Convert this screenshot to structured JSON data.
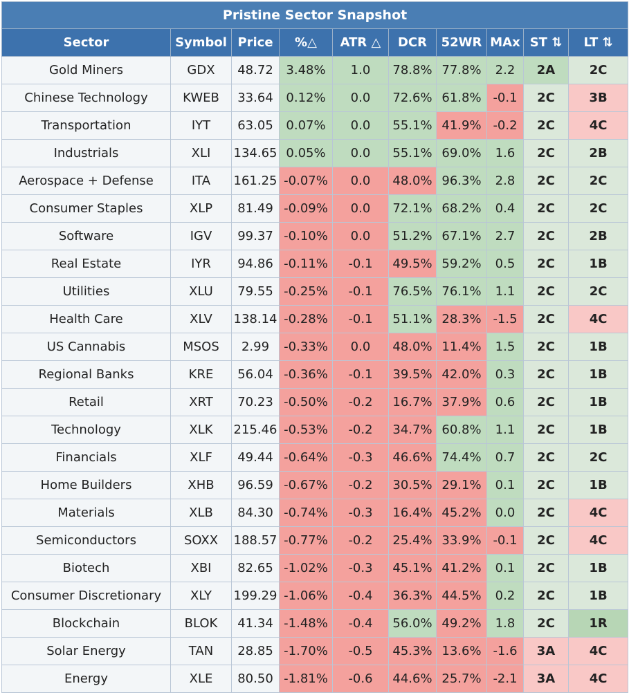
{
  "title": "Pristine Sector Snapshot",
  "columns": [
    "Sector",
    "Symbol",
    "Price",
    "%△",
    "ATR △",
    "DCR",
    "52WR",
    "MAx",
    "ST ⇅",
    "LT ⇅"
  ],
  "rows": [
    {
      "sector": "Gold Miners",
      "symbol": "GDX",
      "price": "48.72",
      "pct": "3.48%",
      "atr": "1.0",
      "dcr": "78.8%",
      "wr52": "77.8%",
      "max": "2.2",
      "st": "2A",
      "lt": "2C"
    },
    {
      "sector": "Chinese Technology",
      "symbol": "KWEB",
      "price": "33.64",
      "pct": "0.12%",
      "atr": "0.0",
      "dcr": "72.6%",
      "wr52": "61.8%",
      "max": "-0.1",
      "st": "2C",
      "lt": "3B"
    },
    {
      "sector": "Transportation",
      "symbol": "IYT",
      "price": "63.05",
      "pct": "0.07%",
      "atr": "0.0",
      "dcr": "55.1%",
      "wr52": "41.9%",
      "max": "-0.2",
      "st": "2C",
      "lt": "4C"
    },
    {
      "sector": "Industrials",
      "symbol": "XLI",
      "price": "134.65",
      "pct": "0.05%",
      "atr": "0.0",
      "dcr": "55.1%",
      "wr52": "69.0%",
      "max": "1.6",
      "st": "2C",
      "lt": "2B"
    },
    {
      "sector": "Aerospace + Defense",
      "symbol": "ITA",
      "price": "161.25",
      "pct": "-0.07%",
      "atr": "0.0",
      "dcr": "48.0%",
      "wr52": "96.3%",
      "max": "2.8",
      "st": "2C",
      "lt": "2C"
    },
    {
      "sector": "Consumer Staples",
      "symbol": "XLP",
      "price": "81.49",
      "pct": "-0.09%",
      "atr": "0.0",
      "dcr": "72.1%",
      "wr52": "68.2%",
      "max": "0.4",
      "st": "2C",
      "lt": "2C"
    },
    {
      "sector": "Software",
      "symbol": "IGV",
      "price": "99.37",
      "pct": "-0.10%",
      "atr": "0.0",
      "dcr": "51.2%",
      "wr52": "67.1%",
      "max": "2.7",
      "st": "2C",
      "lt": "2B"
    },
    {
      "sector": "Real Estate",
      "symbol": "IYR",
      "price": "94.86",
      "pct": "-0.11%",
      "atr": "-0.1",
      "dcr": "49.5%",
      "wr52": "59.2%",
      "max": "0.5",
      "st": "2C",
      "lt": "1B"
    },
    {
      "sector": "Utilities",
      "symbol": "XLU",
      "price": "79.55",
      "pct": "-0.25%",
      "atr": "-0.1",
      "dcr": "76.5%",
      "wr52": "76.1%",
      "max": "1.1",
      "st": "2C",
      "lt": "2C"
    },
    {
      "sector": "Health Care",
      "symbol": "XLV",
      "price": "138.14",
      "pct": "-0.28%",
      "atr": "-0.1",
      "dcr": "51.1%",
      "wr52": "28.3%",
      "max": "-1.5",
      "st": "2C",
      "lt": "4C"
    },
    {
      "sector": "US Cannabis",
      "symbol": "MSOS",
      "price": "2.99",
      "pct": "-0.33%",
      "atr": "0.0",
      "dcr": "48.0%",
      "wr52": "11.4%",
      "max": "1.5",
      "st": "2C",
      "lt": "1B"
    },
    {
      "sector": "Regional Banks",
      "symbol": "KRE",
      "price": "56.04",
      "pct": "-0.36%",
      "atr": "-0.1",
      "dcr": "39.5%",
      "wr52": "42.0%",
      "max": "0.3",
      "st": "2C",
      "lt": "1B"
    },
    {
      "sector": "Retail",
      "symbol": "XRT",
      "price": "70.23",
      "pct": "-0.50%",
      "atr": "-0.2",
      "dcr": "16.7%",
      "wr52": "37.9%",
      "max": "0.6",
      "st": "2C",
      "lt": "1B"
    },
    {
      "sector": "Technology",
      "symbol": "XLK",
      "price": "215.46",
      "pct": "-0.53%",
      "atr": "-0.2",
      "dcr": "34.7%",
      "wr52": "60.8%",
      "max": "1.1",
      "st": "2C",
      "lt": "1B"
    },
    {
      "sector": "Financials",
      "symbol": "XLF",
      "price": "49.44",
      "pct": "-0.64%",
      "atr": "-0.3",
      "dcr": "46.6%",
      "wr52": "74.4%",
      "max": "0.7",
      "st": "2C",
      "lt": "2C"
    },
    {
      "sector": "Home Builders",
      "symbol": "XHB",
      "price": "96.59",
      "pct": "-0.67%",
      "atr": "-0.2",
      "dcr": "30.5%",
      "wr52": "29.1%",
      "max": "0.1",
      "st": "2C",
      "lt": "1B"
    },
    {
      "sector": "Materials",
      "symbol": "XLB",
      "price": "84.30",
      "pct": "-0.74%",
      "atr": "-0.3",
      "dcr": "16.4%",
      "wr52": "45.2%",
      "max": "0.0",
      "st": "2C",
      "lt": "4C"
    },
    {
      "sector": "Semiconductors",
      "symbol": "SOXX",
      "price": "188.57",
      "pct": "-0.77%",
      "atr": "-0.2",
      "dcr": "25.4%",
      "wr52": "33.9%",
      "max": "-0.1",
      "st": "2C",
      "lt": "4C"
    },
    {
      "sector": "Biotech",
      "symbol": "XBI",
      "price": "82.65",
      "pct": "-1.02%",
      "atr": "-0.3",
      "dcr": "45.1%",
      "wr52": "41.2%",
      "max": "0.1",
      "st": "2C",
      "lt": "1B"
    },
    {
      "sector": "Consumer Discretionary",
      "symbol": "XLY",
      "price": "199.29",
      "pct": "-1.06%",
      "atr": "-0.4",
      "dcr": "36.3%",
      "wr52": "44.5%",
      "max": "0.2",
      "st": "2C",
      "lt": "1B"
    },
    {
      "sector": "Blockchain",
      "symbol": "BLOK",
      "price": "41.34",
      "pct": "-1.48%",
      "atr": "-0.4",
      "dcr": "56.0%",
      "wr52": "49.2%",
      "max": "1.8",
      "st": "2C",
      "lt": "1R"
    },
    {
      "sector": "Solar Energy",
      "symbol": "TAN",
      "price": "28.85",
      "pct": "-1.70%",
      "atr": "-0.5",
      "dcr": "45.3%",
      "wr52": "13.6%",
      "max": "-1.6",
      "st": "3A",
      "lt": "4C"
    },
    {
      "sector": "Energy",
      "symbol": "XLE",
      "price": "80.50",
      "pct": "-1.81%",
      "atr": "-0.6",
      "dcr": "44.6%",
      "wr52": "25.7%",
      "max": "-2.1",
      "st": "3A",
      "lt": "4C"
    }
  ]
}
